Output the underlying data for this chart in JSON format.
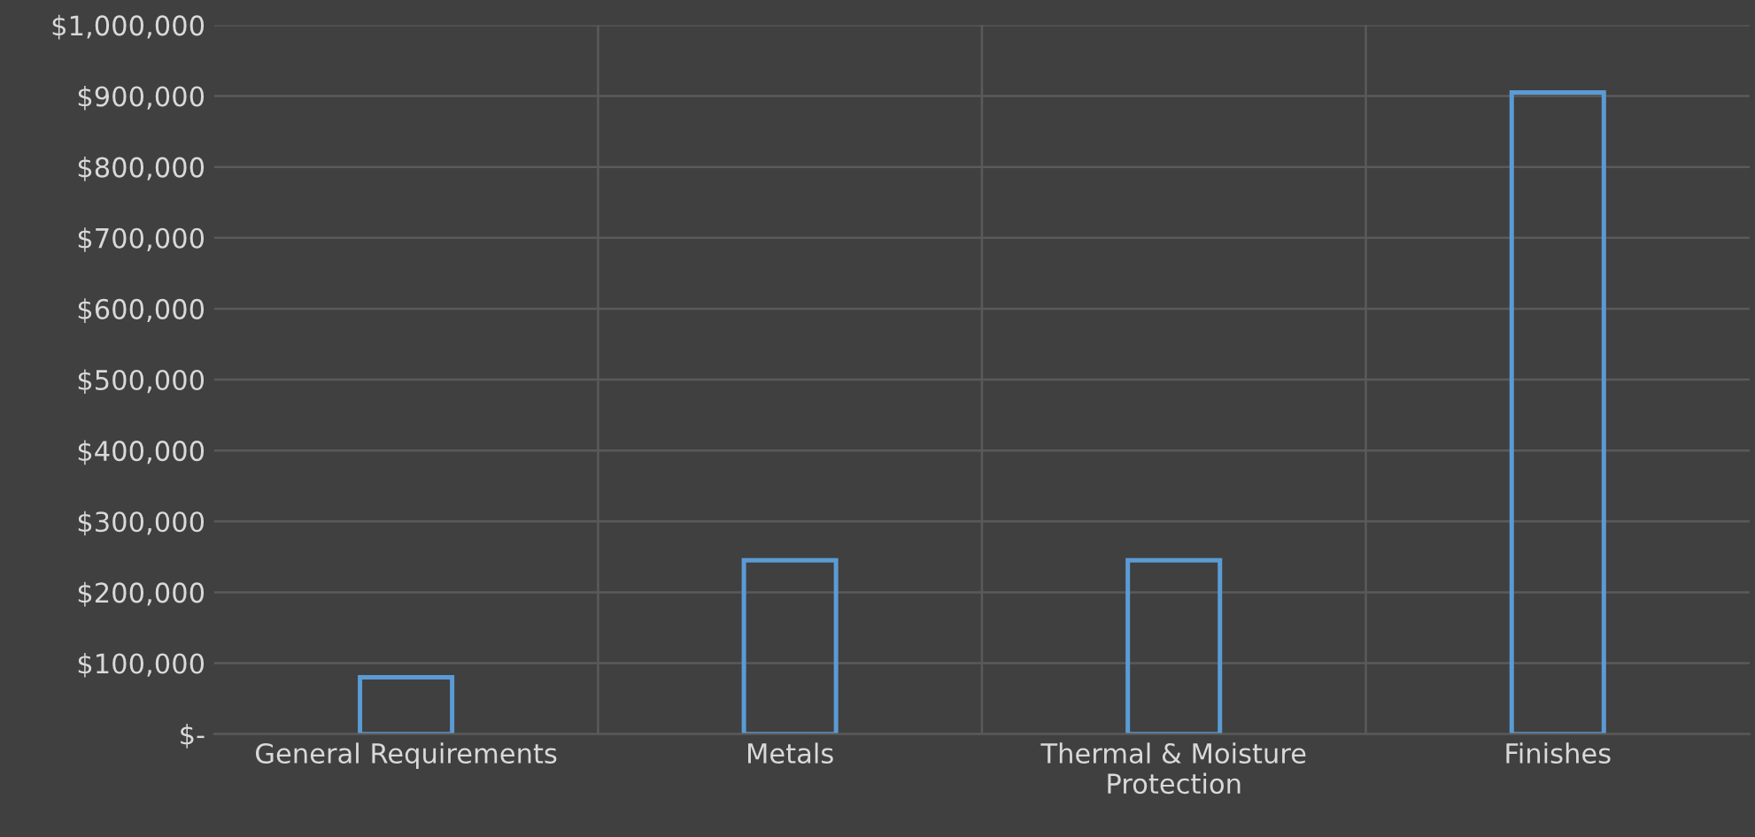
{
  "chart_data": {
    "type": "bar",
    "categories": [
      "General Requirements",
      "Metals",
      "Thermal & Moisture Protection",
      "Finishes"
    ],
    "values": [
      80000,
      245000,
      245000,
      905000
    ],
    "color": "#5b9bd5",
    "ylim": [
      0,
      1000000
    ],
    "yticks": [
      {
        "value": 0,
        "label": "$-"
      },
      {
        "value": 100000,
        "label": "$100,000"
      },
      {
        "value": 200000,
        "label": "$200,000"
      },
      {
        "value": 300000,
        "label": "$300,000"
      },
      {
        "value": 400000,
        "label": "$400,000"
      },
      {
        "value": 500000,
        "label": "$500,000"
      },
      {
        "value": 600000,
        "label": "$600,000"
      },
      {
        "value": 700000,
        "label": "$700,000"
      },
      {
        "value": 800000,
        "label": "$800,000"
      },
      {
        "value": 900000,
        "label": "$900,000"
      },
      {
        "value": 1000000,
        "label": "$1,000,000"
      }
    ],
    "grid": true
  }
}
